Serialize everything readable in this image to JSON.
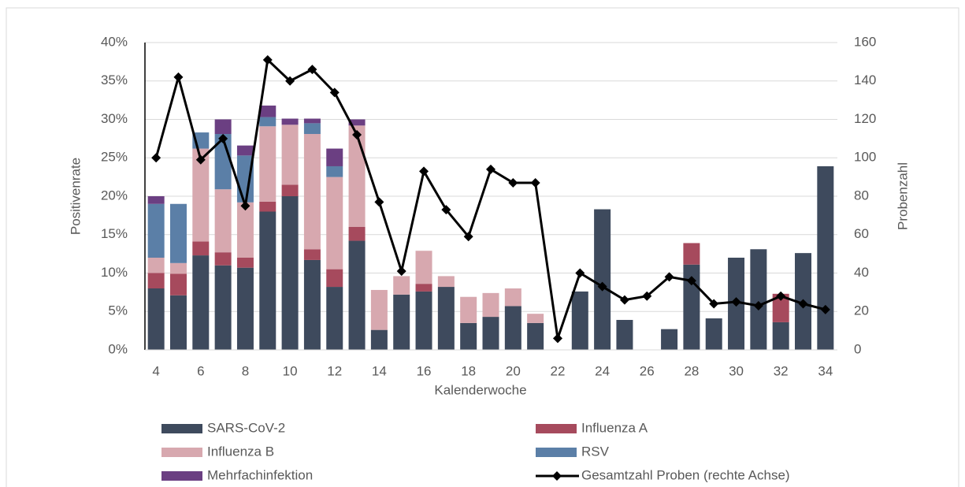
{
  "chart_data": {
    "type": "bar",
    "stacked": true,
    "x_label": "Kalenderwoche",
    "y_label": "Positivenrate",
    "y2_label": "Probenzahl",
    "categories": [
      4,
      null,
      6,
      null,
      8,
      null,
      10,
      null,
      12,
      null,
      14,
      null,
      16,
      null,
      18,
      null,
      20,
      null,
      22,
      null,
      24,
      null,
      26,
      null,
      28,
      null,
      30,
      null,
      32,
      null,
      34
    ],
    "ylim": [
      0,
      40
    ],
    "yticks": [
      {
        "value": 0,
        "label": "0%"
      },
      {
        "value": 5,
        "label": "5%"
      },
      {
        "value": 10,
        "label": "10%"
      },
      {
        "value": 15,
        "label": "15%"
      },
      {
        "value": 20,
        "label": "20%"
      },
      {
        "value": 25,
        "label": "25%"
      },
      {
        "value": 30,
        "label": "30%"
      },
      {
        "value": 35,
        "label": "35%"
      },
      {
        "value": 40,
        "label": "40%"
      }
    ],
    "y2lim": [
      0,
      160
    ],
    "y2ticks": [
      0,
      20,
      40,
      60,
      80,
      100,
      120,
      140,
      160
    ],
    "grid": true,
    "series": [
      {
        "name": "SARS-CoV-2",
        "color": "#3e4a5d",
        "values": [
          8.0,
          7.1,
          12.3,
          11.0,
          10.7,
          18.0,
          20.0,
          11.7,
          8.2,
          14.2,
          2.6,
          7.2,
          7.6,
          8.2,
          3.5,
          4.3,
          5.7,
          3.5,
          0,
          7.6,
          18.3,
          3.9,
          0,
          2.7,
          11.1,
          4.1,
          12.0,
          13.1,
          3.6,
          12.6,
          23.9
        ]
      },
      {
        "name": "Influenza A",
        "color": "#a64a5d",
        "values": [
          2.0,
          2.8,
          1.8,
          1.7,
          1.3,
          1.3,
          1.5,
          1.4,
          2.3,
          1.8,
          0,
          0,
          1.0,
          0,
          0,
          0,
          0,
          0,
          0,
          0,
          0,
          0,
          0,
          0,
          2.8,
          0,
          0,
          0,
          3.7,
          0,
          0
        ]
      },
      {
        "name": "Influenza B",
        "color": "#d7a8af",
        "values": [
          2.0,
          1.4,
          12.1,
          8.2,
          7.2,
          9.8,
          7.8,
          15.0,
          12.0,
          13.2,
          5.2,
          2.4,
          4.3,
          1.4,
          3.4,
          3.1,
          2.3,
          1.2,
          0,
          0,
          0,
          0,
          0,
          0,
          0,
          0,
          0,
          0,
          0,
          0,
          0
        ]
      },
      {
        "name": "RSV",
        "color": "#5b7fa7",
        "values": [
          7.0,
          7.7,
          2.1,
          7.2,
          6.1,
          1.2,
          0,
          1.4,
          1.4,
          0,
          0,
          0,
          0,
          0,
          0,
          0,
          0,
          0,
          0,
          0,
          0,
          0,
          0,
          0,
          0,
          0,
          0,
          0,
          0,
          0,
          0
        ]
      },
      {
        "name": "Mehrfachinfektion",
        "color": "#6b3f82",
        "values": [
          1.0,
          0,
          0,
          1.9,
          1.3,
          1.5,
          0.8,
          0.6,
          2.3,
          0.8,
          0,
          0,
          0,
          0,
          0,
          0,
          0,
          0,
          0,
          0,
          0,
          0,
          0,
          0,
          0,
          0,
          0,
          0,
          0,
          0,
          0
        ]
      },
      {
        "name": "Gesamtzahl Proben (rechte Achse)",
        "type": "line",
        "axis": "y2",
        "color": "#000000",
        "marker": "diamond",
        "values": [
          100,
          142,
          99,
          110,
          75,
          151,
          140,
          146,
          134,
          112,
          77,
          41,
          93,
          73,
          59,
          94,
          87,
          87,
          6,
          40,
          33,
          26,
          28,
          38,
          36,
          24,
          25,
          23,
          28,
          24,
          21
        ]
      }
    ]
  }
}
